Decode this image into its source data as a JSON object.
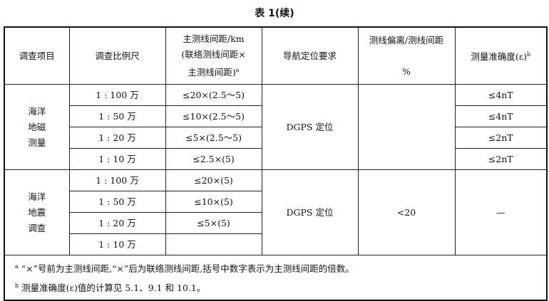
{
  "title": "表 1(续)",
  "headers": [
    "调查项目",
    "调查比例尺",
    "主测线间距/km",
    "(联络测线间距×",
    "主测线间距)",
    "导航定位要求",
    "测线偏离/测线间距",
    "%",
    "测量准确度(ε)"
  ],
  "header_sup_a": "a",
  "header_sup_b": "b",
  "groups": [
    {
      "item": [
        "海洋",
        "地磁",
        "测量"
      ],
      "navigation": "DGPS 定位",
      "deviation": "",
      "rows": [
        {
          "scale": "1 : 100 万",
          "spacing": "≤20×(2.5～5)",
          "accuracy": "≤4nT"
        },
        {
          "scale": "1 : 50 万",
          "spacing": "≤10×(2.5～5)",
          "accuracy": "≤4nT"
        },
        {
          "scale": "1 : 20 万",
          "spacing": "≤5×(2.5～5)",
          "accuracy": "≤2nT"
        },
        {
          "scale": "1 : 10 万",
          "spacing": "≤2.5×(5)",
          "accuracy": "≤2nT"
        }
      ]
    },
    {
      "item": [
        "海洋",
        "地震",
        "调查"
      ],
      "navigation": "DGPS 定位",
      "deviation": "<20",
      "accuracy": "—",
      "rows": [
        {
          "scale": "1 : 100 万",
          "spacing": "≤20×(5)"
        },
        {
          "scale": "1 : 50 万",
          "spacing": "≤10×(5)"
        },
        {
          "scale": "1 : 20 万",
          "spacing": "≤5×(5)"
        },
        {
          "scale": "1 : 10 万",
          "spacing": ""
        }
      ]
    }
  ],
  "footnotes": [
    {
      "mark": "a",
      "text": "“×”号前为主测线间距,“×”后为联络测线间距,括号中数字表示为主测线间距的倍数。"
    },
    {
      "mark": "b",
      "text": "测量准确度(ε)值的计算见 5.1、9.1 和 10.1。"
    }
  ]
}
